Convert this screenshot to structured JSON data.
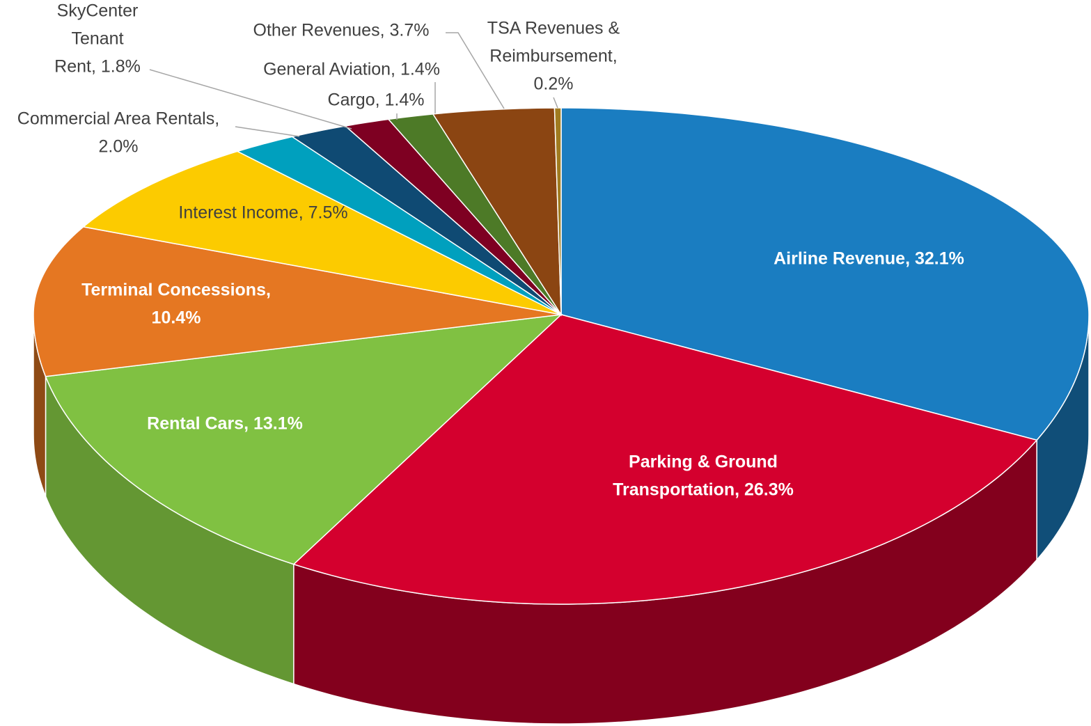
{
  "chart_data": {
    "type": "pie3d",
    "categories": [
      "Airline Revenue",
      "Parking & Ground Transportation",
      "Rental Cars",
      "Terminal Concessions",
      "Interest Income",
      "Commercial Area Rentals",
      "SkyCenter Tenant Rent",
      "Cargo",
      "General Aviation",
      "Other Revenues",
      "TSA Revenues & Reimbursement"
    ],
    "values": [
      32.1,
      26.3,
      13.1,
      10.4,
      7.5,
      2.0,
      1.8,
      1.4,
      1.4,
      3.7,
      0.2
    ],
    "value_labels": [
      [
        "Airline Revenue, 32.1%"
      ],
      [
        "Parking & Ground",
        "Transportation, 26.3%"
      ],
      [
        "Rental Cars, 13.1%"
      ],
      [
        "Terminal Concessions,",
        "10.4%"
      ],
      [
        "Interest Income, 7.5%"
      ],
      [
        "Commercial Area Rentals,",
        "2.0%"
      ],
      [
        "SkyCenter",
        "Tenant",
        "Rent, 1.8%"
      ],
      [
        "Cargo, 1.4%"
      ],
      [
        "General Aviation, 1.4%"
      ],
      [
        "Other Revenues, 3.7%"
      ],
      [
        "TSA Revenues &",
        "Reimbursement,",
        "0.2%"
      ]
    ],
    "colors": [
      "#1a7dc1",
      "#d4002e",
      "#80c142",
      "#e57722",
      "#fccb00",
      "#00a0be",
      "#0f4a73",
      "#7e0022",
      "#4d7a27",
      "#8b4512",
      "#a07b20"
    ]
  }
}
